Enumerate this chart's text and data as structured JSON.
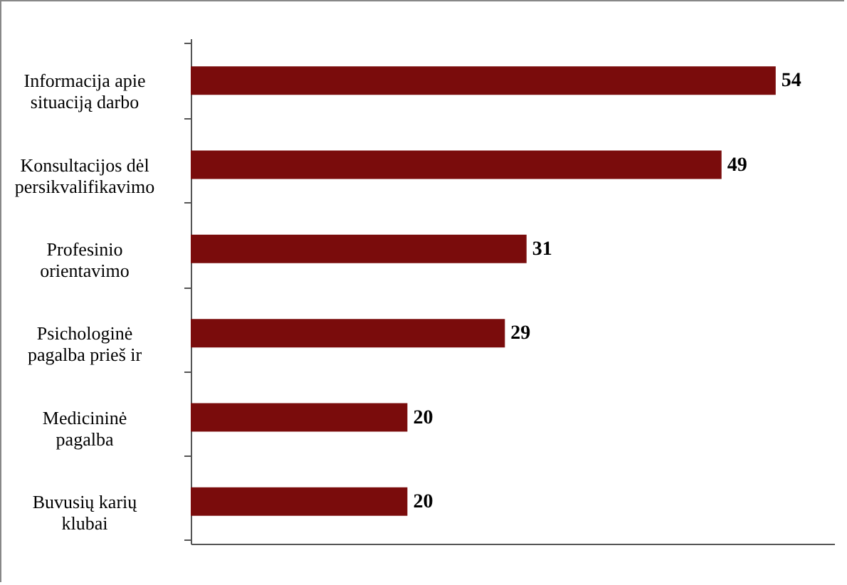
{
  "chart_data": {
    "type": "bar",
    "orientation": "horizontal",
    "data_labels": true,
    "color": "#7a0c0c",
    "categories": [
      "Informacija apie situaciją darbo",
      "Konsultacijos dėl persikvalifikavimo",
      "Profesinio orientavimo",
      "Psichologinė pagalba prieš ir",
      "Medicininė pagalba",
      "Buvusių karių klubai"
    ],
    "values": [
      54,
      49,
      31,
      29,
      20,
      20
    ]
  }
}
